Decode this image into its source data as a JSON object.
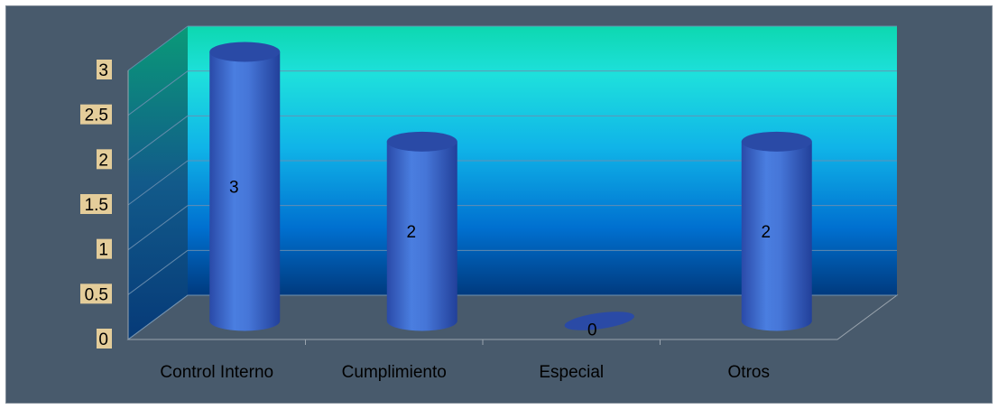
{
  "chart_data": {
    "type": "bar",
    "style": "3d-cylinder",
    "title": "",
    "xlabel": "",
    "ylabel": "",
    "categories": [
      "Control Interno",
      "Cumplimiento",
      "Especial",
      "Otros"
    ],
    "values": [
      3,
      2,
      0,
      2
    ],
    "data_labels": [
      "3",
      "2",
      "0",
      "2"
    ],
    "y_ticks": [
      "0",
      "0.5",
      "1",
      "1.5",
      "2",
      "2.5",
      "3"
    ],
    "ylim": [
      0,
      3
    ],
    "grid": true,
    "legend": "none",
    "colors": {
      "frame_background": "#485a6c",
      "bar": "#3b62c4",
      "bar_top": "#2a4aa6",
      "back_wall_top": "#0dd4b4",
      "back_wall_bottom": "#003a80",
      "tick_label_bg": "#f5d9a0",
      "text": "#000000"
    }
  }
}
